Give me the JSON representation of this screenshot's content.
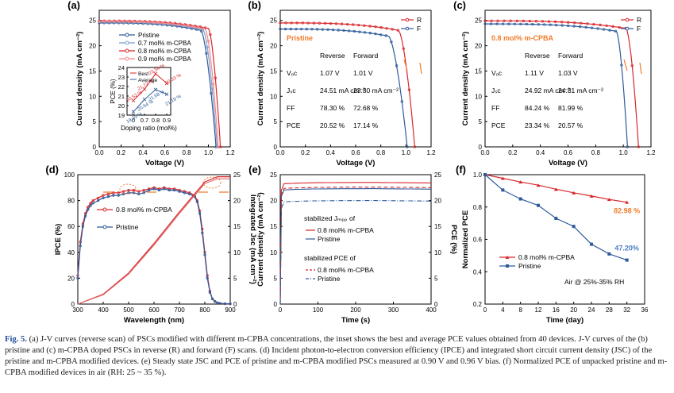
{
  "colors": {
    "red": "#d9262b",
    "blue": "#2d5a9a",
    "orange": "#f07b2a",
    "gray": "#999999"
  },
  "caption": {
    "lead": "Fig. 5.",
    "text": " (a) J-V curves (reverse scan) of PSCs modified with different m-CPBA concentrations, the inset shows the best and average PCE values obtained from 40 devices. J-V curves of the (b) pristine and (c) m-CPBA doped PSCs in reverse (R) and forward (F) scans. (d) Incident photon-to-electron conversion efficiency (IPCE) and integrated short circuit current density (JSC) of the pristine and m-CPBA modified devices. (e) Steady state JSC and PCE of pristine and m-CPBA modified PSCs measured at 0.90 V and 0.96 V bias. (f) Normalized PCE of unpacked pristine and m-CPBA modified devices in air (RH: 25 ~ 35 %)."
  },
  "chart_data": [
    {
      "panel": "(a)",
      "type": "line",
      "xlabel": "Voltage (V)",
      "ylabel": "Current density (mA cm⁻²)",
      "xlim": [
        0,
        1.2
      ],
      "ylim": [
        0,
        27
      ],
      "xticks": [
        "0.0",
        "0.2",
        "0.4",
        "0.6",
        "0.8",
        "1.0",
        "1.2"
      ],
      "yticks": [
        "0",
        "5",
        "10",
        "15",
        "20",
        "25"
      ],
      "series": [
        {
          "name": "Pristine",
          "jsc": 24.51,
          "voc": 1.07,
          "vk": 0.93,
          "color": "#2d5a9a",
          "marker": "circle"
        },
        {
          "name": "0.7 mol% m-CPBA",
          "jsc": 24.7,
          "voc": 1.08,
          "vk": 0.95,
          "color": "#7d9fcc",
          "marker": "circle"
        },
        {
          "name": "0.8 mol% m-CPBA",
          "jsc": 24.92,
          "voc": 1.11,
          "vk": 1.0,
          "color": "#d9262b",
          "marker": "circle"
        },
        {
          "name": "0.9 mol% m-CPBA",
          "jsc": 24.8,
          "voc": 1.09,
          "vk": 0.97,
          "color": "#f4898d",
          "marker": "circle"
        }
      ],
      "inset": {
        "xlabel": "Doping ratio (mol%)",
        "ylabel": "PCE (%)",
        "xticks": [
          "0",
          "0.7",
          "0.8",
          "0.9"
        ],
        "yticks": [
          "19",
          "20",
          "21",
          "22",
          "23",
          "24"
        ],
        "x": [
          0,
          0.7,
          0.8,
          0.9
        ],
        "ylim": [
          19,
          24
        ],
        "series": [
          {
            "name": "Best",
            "values": [
              20.52,
              21.72,
              23.34,
              22.33
            ],
            "color": "#d9262b"
          },
          {
            "name": "Average",
            "values": [
              19.35,
              20.64,
              21.68,
              21.19
            ],
            "color": "#2d5a9a"
          }
        ],
        "labels": {
          "best": [
            "20.52 %",
            "21.72 %",
            "23.34 %",
            "22.33 %"
          ],
          "avg": [
            "19.35 %",
            "20.64 %",
            "21.68 %",
            "21.19 %"
          ]
        }
      }
    },
    {
      "panel": "(b)",
      "type": "line",
      "xlabel": "Voltage (V)",
      "ylabel": "Current density (mA cm⁻²)",
      "xlim": [
        0,
        1.2
      ],
      "ylim": [
        0,
        27
      ],
      "xticks": [
        "0.0",
        "0.2",
        "0.4",
        "0.6",
        "0.8",
        "1.0",
        "1.2"
      ],
      "yticks": [
        "0",
        "5",
        "10",
        "15",
        "20",
        "25"
      ],
      "label": "Pristine",
      "series": [
        {
          "name": "R",
          "jsc": 24.51,
          "voc": 1.07,
          "vk": 0.94,
          "color": "#d9262b"
        },
        {
          "name": "F",
          "jsc": 23.3,
          "voc": 1.01,
          "vk": 0.86,
          "color": "#2d5a9a"
        }
      ],
      "table": {
        "headers": [
          "",
          "Reverse",
          "Forward"
        ],
        "rows": [
          [
            "Vₒc",
            "1.07 V",
            "1.01 V"
          ],
          [
            "Jₛc",
            "24.51 mA cm⁻²",
            "23.30 mA cm⁻²"
          ],
          [
            "FF",
            "78.30 %",
            "72.68 %"
          ],
          [
            "PCE",
            "20.52 %",
            "17.14 %"
          ]
        ]
      }
    },
    {
      "panel": "(c)",
      "type": "line",
      "xlabel": "Voltage (V)",
      "ylabel": "Current density (mA cm⁻²)",
      "xlim": [
        0,
        1.2
      ],
      "ylim": [
        0,
        27
      ],
      "xticks": [
        "0.0",
        "0.2",
        "0.4",
        "0.6",
        "0.8",
        "1.0",
        "1.2"
      ],
      "yticks": [
        "0",
        "5",
        "10",
        "15",
        "20",
        "25"
      ],
      "label": "0.8 mol% m-CPBA",
      "series": [
        {
          "name": "R",
          "jsc": 24.92,
          "voc": 1.11,
          "vk": 1.02,
          "color": "#d9262b"
        },
        {
          "name": "F",
          "jsc": 24.31,
          "voc": 1.03,
          "vk": 0.95,
          "color": "#2d5a9a"
        }
      ],
      "table": {
        "headers": [
          "",
          "Reverse",
          "Forward"
        ],
        "rows": [
          [
            "Vₒc",
            "1.11 V",
            "1.03 V"
          ],
          [
            "Jₛc",
            "24.92 mA cm⁻²",
            "24.31 mA cm⁻²"
          ],
          [
            "FF",
            "84.24 %",
            "81.99 %"
          ],
          [
            "PCE",
            "23.34 %",
            "20.57 %"
          ]
        ]
      }
    },
    {
      "panel": "(d)",
      "type": "line",
      "xlabel": "Wavelength (nm)",
      "ylabel": "IPCE (%)",
      "y2label": "Integrated Jsc (mA cm⁻²)",
      "xlim": [
        300,
        900
      ],
      "ylim": [
        0,
        100
      ],
      "y2lim": [
        0,
        25
      ],
      "xticks": [
        "300",
        "400",
        "500",
        "600",
        "700",
        "800",
        "900"
      ],
      "yticks": [
        "0",
        "20",
        "40",
        "60",
        "80",
        "100"
      ],
      "y2ticks": [
        "0",
        "5",
        "10",
        "15",
        "20",
        "25"
      ],
      "series": [
        {
          "name": "0.8 mol% m-CPBA",
          "color": "#d9262b",
          "x": [
            300,
            310,
            320,
            330,
            340,
            350,
            360,
            380,
            400,
            420,
            440,
            460,
            480,
            500,
            520,
            540,
            560,
            580,
            600,
            620,
            640,
            660,
            680,
            700,
            720,
            740,
            760,
            770,
            780,
            790,
            800,
            810,
            820,
            830,
            840,
            850,
            860,
            880,
            900
          ],
          "values": [
            22,
            48,
            62,
            70,
            75,
            78,
            80,
            82,
            84,
            85,
            86,
            86,
            87,
            88,
            88,
            87,
            88,
            89,
            90,
            89,
            90,
            89,
            89,
            88,
            87,
            86,
            84,
            80,
            72,
            58,
            40,
            22,
            10,
            4,
            2,
            1,
            0.5,
            0.3,
            0.2
          ]
        },
        {
          "name": "Pristine",
          "color": "#2d5a9a",
          "x": [
            300,
            310,
            320,
            330,
            340,
            350,
            360,
            380,
            400,
            420,
            440,
            460,
            480,
            500,
            520,
            540,
            560,
            580,
            600,
            620,
            640,
            660,
            680,
            700,
            720,
            740,
            760,
            770,
            780,
            790,
            800,
            810,
            820,
            830,
            840,
            850,
            860,
            880,
            900
          ],
          "values": [
            20,
            45,
            60,
            68,
            73,
            76,
            78,
            80,
            82,
            83,
            84,
            84,
            85,
            86,
            86,
            85,
            86,
            88,
            89,
            88,
            89,
            88,
            88,
            87,
            86,
            85,
            83,
            79,
            70,
            55,
            38,
            20,
            9,
            4,
            2,
            1,
            0.5,
            0.3,
            0.2
          ]
        },
        {
          "name": "Integrated Jsc (0.8 mol% m-CPBA)",
          "axis": "y2",
          "color": "#d9262b",
          "x": [
            300,
            400,
            500,
            600,
            700,
            800,
            850,
            900
          ],
          "values": [
            0,
            1.9,
            6.0,
            11.7,
            17.8,
            23.6,
            24.6,
            24.6
          ]
        },
        {
          "name": "Integrated Jsc (Pristine)",
          "axis": "y2",
          "color": "#e07070",
          "x": [
            300,
            400,
            500,
            600,
            700,
            800,
            850,
            900
          ],
          "values": [
            0,
            1.8,
            5.8,
            11.4,
            17.5,
            23.3,
            24.2,
            24.2
          ]
        }
      ]
    },
    {
      "panel": "(e)",
      "type": "line",
      "xlabel": "Time (s)",
      "ylabel": "Current density (mA cm⁻²)",
      "y2label": "PCE (%)",
      "xlim": [
        0,
        400
      ],
      "ylim": [
        0,
        25
      ],
      "y2lim": [
        0,
        25
      ],
      "xticks": [
        "0",
        "100",
        "200",
        "300",
        "400"
      ],
      "yticks": [
        "0",
        "5",
        "10",
        "15",
        "20",
        "25"
      ],
      "y2ticks": [
        "0",
        "5",
        "10",
        "15",
        "20",
        "25"
      ],
      "legend_titles": [
        "stabilized Jₘₚₚ of",
        "stabilized PCE of"
      ],
      "series": [
        {
          "name": "0.8 mol% m-CPBA",
          "group": "J",
          "color": "#d9262b",
          "level": 23.5,
          "style": "solid-marker"
        },
        {
          "name": "Pristine",
          "group": "J",
          "color": "#2d5a9a",
          "level": 22.3,
          "style": "solid-marker"
        },
        {
          "name": "0.8 mol% m-CPBA",
          "group": "PCE",
          "color": "#d9262b",
          "level": 22.6,
          "style": "dash"
        },
        {
          "name": "Pristine",
          "group": "PCE",
          "color": "#2d5a9a",
          "level": 20.0,
          "style": "dashdot"
        }
      ]
    },
    {
      "panel": "(f)",
      "type": "line",
      "xlabel": "Time (day)",
      "ylabel": "Normalized PCE",
      "xlim": [
        0,
        36
      ],
      "ylim": [
        0.2,
        1.0
      ],
      "xticks": [
        "0",
        "4",
        "8",
        "12",
        "16",
        "20",
        "24",
        "28",
        "32",
        "36"
      ],
      "yticks": [
        "0.2",
        "0.4",
        "0.6",
        "0.8",
        "1.0"
      ],
      "note": "Air @ 25%-35% RH",
      "series": [
        {
          "name": "0.8 mol% m-CPBA",
          "color": "#d9262b",
          "x": [
            0,
            4,
            8,
            12,
            16,
            20,
            24,
            28,
            32
          ],
          "values": [
            1.0,
            0.978,
            0.955,
            0.935,
            0.91,
            0.888,
            0.868,
            0.847,
            0.8298
          ],
          "end_label": "82.98 %"
        },
        {
          "name": "Pristine",
          "color": "#2d5a9a",
          "x": [
            0,
            4,
            8,
            12,
            16,
            20,
            24,
            28,
            32
          ],
          "values": [
            1.0,
            0.905,
            0.85,
            0.81,
            0.73,
            0.68,
            0.57,
            0.51,
            0.472
          ],
          "end_label": "47.20%"
        }
      ]
    }
  ]
}
